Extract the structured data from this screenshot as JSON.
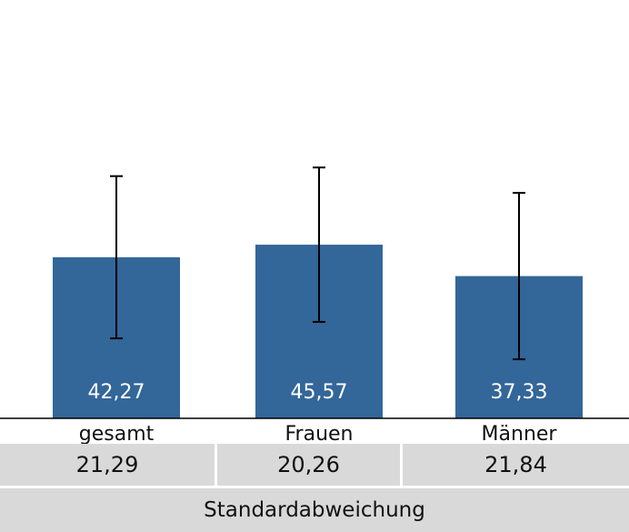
{
  "chart_data": {
    "type": "bar",
    "categories": [
      "gesamt",
      "Frauen",
      "Männer"
    ],
    "values": [
      42.27,
      45.57,
      37.33
    ],
    "value_labels": [
      "42,27",
      "45,57",
      "37,33"
    ],
    "error_bars": [
      21.29,
      20.26,
      21.84
    ],
    "ylim": [
      0,
      100
    ],
    "grid": false,
    "colors": {
      "bar": "#336699",
      "error_bar": "#000000",
      "label": "#ffffff"
    }
  },
  "table": {
    "sd_values": [
      "21,29",
      "20,26",
      "21,84"
    ],
    "row_label": "Standardabweichung"
  }
}
